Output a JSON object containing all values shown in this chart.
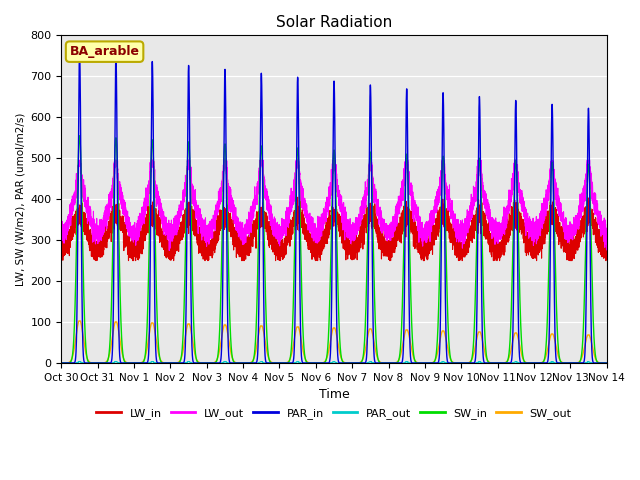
{
  "title": "Solar Radiation",
  "ylabel": "LW, SW (W/m2), PAR (umol/m2/s)",
  "xlabel": "Time",
  "site_label": "BA_arable",
  "ylim": [
    0,
    800
  ],
  "yticks": [
    0,
    100,
    200,
    300,
    400,
    500,
    600,
    700,
    800
  ],
  "xtick_labels": [
    "Oct 30",
    "Oct 31",
    "Nov 1",
    "Nov 2",
    "Nov 3",
    "Nov 4",
    "Nov 5",
    "Nov 6",
    "Nov 7",
    "Nov 8",
    "Nov 9",
    "Nov 10",
    "Nov 11",
    "Nov 12",
    "Nov 13",
    "Nov 14"
  ],
  "series": {
    "LW_in": {
      "color": "#dd0000",
      "lw": 0.8
    },
    "LW_out": {
      "color": "#ff00ff",
      "lw": 0.8
    },
    "PAR_in": {
      "color": "#0000dd",
      "lw": 1.0
    },
    "PAR_out": {
      "color": "#00cccc",
      "lw": 0.7
    },
    "SW_in": {
      "color": "#00dd00",
      "lw": 1.0
    },
    "SW_out": {
      "color": "#ffaa00",
      "lw": 1.0
    }
  },
  "background_color": "#e8e8e8",
  "n_days": 15,
  "pts_per_day": 480,
  "seed": 42
}
